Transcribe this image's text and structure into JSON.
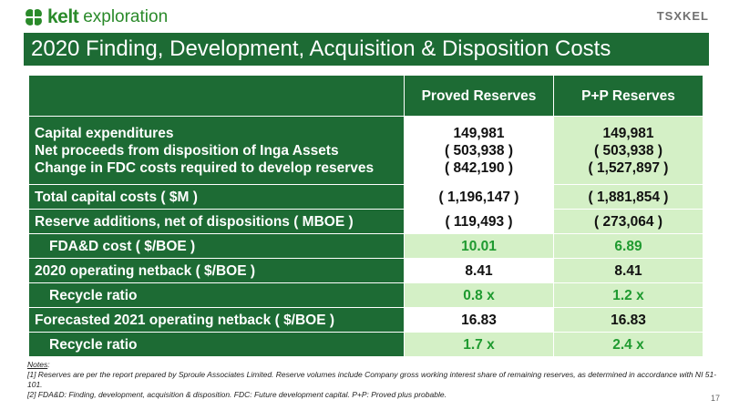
{
  "header": {
    "logo_kelt": "kelt",
    "logo_exploration": "exploration",
    "tsx": "TSXKEL"
  },
  "title": "2020 Finding, Development, Acquisition & Disposition Costs",
  "table": {
    "col1": "Proved Reserves",
    "col2": "P+P Reserves",
    "capex_group": {
      "labels": [
        "Capital expenditures",
        "Net proceeds from disposition of Inga Assets",
        "Change in FDC costs required to develop reserves"
      ],
      "proved": [
        "149,981",
        "( 503,938 )",
        "( 842,190 )"
      ],
      "pp": [
        "149,981",
        "( 503,938 )",
        "( 1,527,897 )"
      ]
    },
    "rows": [
      {
        "label": "Total capital costs ( $M )",
        "proved": "( 1,196,147 )",
        "pp": "( 1,881,854 )"
      },
      {
        "label": "Reserve additions, net of dispositions ( MBOE )",
        "proved": "( 119,493 )",
        "pp": "( 273,064 )"
      },
      {
        "label": "FDA&D cost ( $/BOE )",
        "proved": "10.01",
        "pp": "6.89"
      },
      {
        "label": "2020 operating netback ( $/BOE )",
        "proved": "8.41",
        "pp": "8.41"
      },
      {
        "label": "Recycle ratio",
        "proved": "0.8 x",
        "pp": "1.2 x"
      },
      {
        "label": "Forecasted 2021 operating netback ( $/BOE )",
        "proved": "16.83",
        "pp": "16.83"
      },
      {
        "label": "Recycle ratio",
        "proved": "1.7 x",
        "pp": "2.4 x"
      }
    ]
  },
  "notes": {
    "heading": "Notes",
    "n1": "[1] Reserves are per the report prepared by Sproule Associates Limited. Reserve volumes include Company gross working interest share of remaining reserves, as determined in accordance with NI 51-101.",
    "n2": "[2] FDA&D: Finding, development, acquisition & disposition. FDC: Future development capital. P+P: Proved plus probable."
  },
  "page_number": "17"
}
